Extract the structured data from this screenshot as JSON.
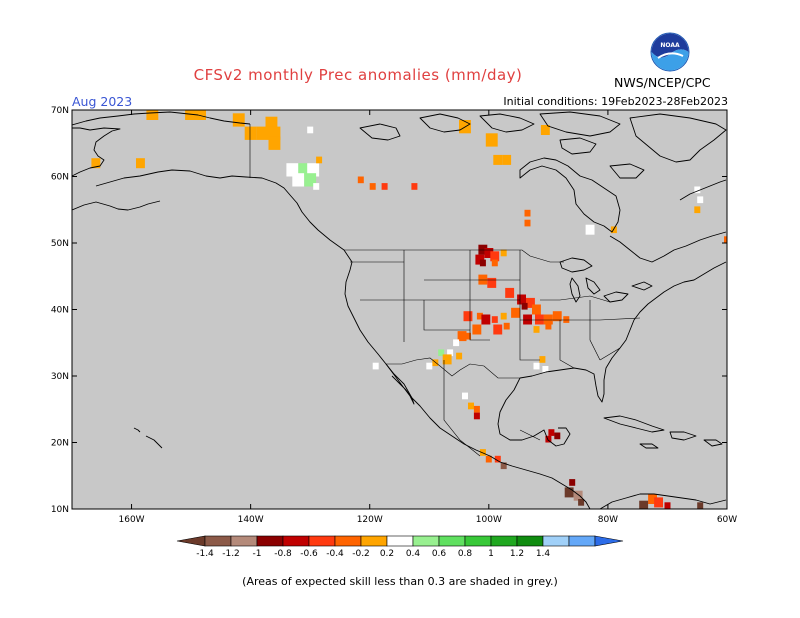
{
  "title": "CFSv2 monthly Prec anomalies (mm/day)",
  "agency": "NWS/NCEP/CPC",
  "logo_text": "NOAA",
  "month": "Aug 2023",
  "initial_conditions": "Initial conditions: 19Feb2023-28Feb2023",
  "footnote": "(Areas of expected skill less than 0.3 are shaded in grey.)",
  "map": {
    "projection": "equirectangular",
    "lon_range": [
      -170,
      -60
    ],
    "lat_range": [
      10,
      70
    ],
    "lat_ticks": [
      {
        "value": 70,
        "label": "70N"
      },
      {
        "value": 60,
        "label": "60N"
      },
      {
        "value": 50,
        "label": "50N"
      },
      {
        "value": 40,
        "label": "40N"
      },
      {
        "value": 30,
        "label": "30N"
      },
      {
        "value": 20,
        "label": "20N"
      },
      {
        "value": 10,
        "label": "10N"
      }
    ],
    "lon_ticks": [
      {
        "value": -160,
        "label": "160W"
      },
      {
        "value": -140,
        "label": "140W"
      },
      {
        "value": -120,
        "label": "120W"
      },
      {
        "value": -100,
        "label": "100W"
      },
      {
        "value": -80,
        "label": "80W"
      },
      {
        "value": -60,
        "label": "60W"
      }
    ],
    "masked_color": "#c8c8c8",
    "coast_color": "#000000"
  },
  "colorbar": {
    "bins": [
      {
        "color": "#6b3a2a"
      },
      {
        "color": "#8c5a48"
      },
      {
        "color": "#b48a7a"
      },
      {
        "color": "#8b0000"
      },
      {
        "color": "#c00000"
      },
      {
        "color": "#ff3a10"
      },
      {
        "color": "#ff6400"
      },
      {
        "color": "#ffa500"
      },
      {
        "color": "#ffffff"
      },
      {
        "color": "#98f090"
      },
      {
        "color": "#60e060"
      },
      {
        "color": "#38c838"
      },
      {
        "color": "#20a820"
      },
      {
        "color": "#108c10"
      },
      {
        "color": "#a0d0f8"
      },
      {
        "color": "#64a8f8"
      },
      {
        "color": "#2c6ce8"
      }
    ],
    "labels": [
      "-1.4",
      "-1.2",
      "-1",
      "-0.8",
      "-0.6",
      "-0.4",
      "-0.2",
      "0.2",
      "0.4",
      "0.6",
      "0.8",
      "1",
      "1.2",
      "1.4"
    ]
  },
  "anomalies": [
    {
      "lon": -156.5,
      "lat": 69.5,
      "value": 0,
      "size": 2
    },
    {
      "lon": -150,
      "lat": 69.5,
      "value": 0,
      "size": 2
    },
    {
      "lon": -148.5,
      "lat": 69.5,
      "value": 0,
      "size": 2
    },
    {
      "lon": -142,
      "lat": 68.5,
      "value": 0,
      "size": 2
    },
    {
      "lon": -136.5,
      "lat": 68,
      "value": 0,
      "size": 2
    },
    {
      "lon": -140,
      "lat": 66.5,
      "value": 0,
      "size": 2
    },
    {
      "lon": -138,
      "lat": 66.5,
      "value": 0,
      "size": 2
    },
    {
      "lon": -136,
      "lat": 66.5,
      "value": 0,
      "size": 2
    },
    {
      "lon": -136,
      "lat": 65,
      "value": 0,
      "size": 2
    },
    {
      "lon": -130,
      "lat": 67,
      "value": 0.3,
      "size": 1
    },
    {
      "lon": -158.5,
      "lat": 62,
      "value": 0,
      "size": 1.5
    },
    {
      "lon": -166,
      "lat": 62,
      "value": 0,
      "size": 1.5
    },
    {
      "lon": -133,
      "lat": 61,
      "value": 0.3,
      "size": 2
    },
    {
      "lon": -131,
      "lat": 61,
      "value": 0.5,
      "size": 2
    },
    {
      "lon": -129.5,
      "lat": 61,
      "value": 0.3,
      "size": 2
    },
    {
      "lon": -132,
      "lat": 59.5,
      "value": 0.3,
      "size": 2
    },
    {
      "lon": -130,
      "lat": 59.5,
      "value": 0.5,
      "size": 2
    },
    {
      "lon": -128.5,
      "lat": 62.5,
      "value": 0,
      "size": 1
    },
    {
      "lon": -129,
      "lat": 58.5,
      "value": 0.3,
      "size": 1
    },
    {
      "lon": -121.5,
      "lat": 59.5,
      "value": -0.3,
      "size": 1
    },
    {
      "lon": -119.5,
      "lat": 58.5,
      "value": -0.3,
      "size": 1
    },
    {
      "lon": -117.5,
      "lat": 58.5,
      "value": -0.5,
      "size": 1
    },
    {
      "lon": -112.5,
      "lat": 58.5,
      "value": -0.5,
      "size": 1
    },
    {
      "lon": -104,
      "lat": 67.5,
      "value": 0,
      "size": 2
    },
    {
      "lon": -99.5,
      "lat": 65.5,
      "value": 0,
      "size": 2
    },
    {
      "lon": -97,
      "lat": 62.5,
      "value": 0,
      "size": 1.5
    },
    {
      "lon": -90.5,
      "lat": 67,
      "value": 0,
      "size": 1.5
    },
    {
      "lon": -98.5,
      "lat": 62.5,
      "value": 0,
      "size": 1.5
    },
    {
      "lon": -93.5,
      "lat": 54.5,
      "value": -0.3,
      "size": 1
    },
    {
      "lon": -93.5,
      "lat": 53,
      "value": -0.3,
      "size": 1
    },
    {
      "lon": -83,
      "lat": 52,
      "value": 0.3,
      "size": 1.5
    },
    {
      "lon": -79,
      "lat": 52,
      "value": 0,
      "size": 1
    },
    {
      "lon": -65,
      "lat": 58,
      "value": 0.3,
      "size": 1
    },
    {
      "lon": -64.5,
      "lat": 56.5,
      "value": 0.3,
      "size": 1
    },
    {
      "lon": -65,
      "lat": 55,
      "value": 0,
      "size": 1
    },
    {
      "lon": -60,
      "lat": 50.5,
      "value": -0.3,
      "size": 1
    },
    {
      "lon": -101,
      "lat": 49,
      "value": -0.9,
      "size": 1.5
    },
    {
      "lon": -100,
      "lat": 48.5,
      "value": -0.7,
      "size": 1.5
    },
    {
      "lon": -99,
      "lat": 48,
      "value": -0.5,
      "size": 1.5
    },
    {
      "lon": -101.5,
      "lat": 47.5,
      "value": -0.7,
      "size": 1.5
    },
    {
      "lon": -101,
      "lat": 47,
      "value": -0.9,
      "size": 1
    },
    {
      "lon": -99,
      "lat": 47,
      "value": -0.3,
      "size": 1
    },
    {
      "lon": -97.5,
      "lat": 48.5,
      "value": 0,
      "size": 1
    },
    {
      "lon": -101,
      "lat": 44.5,
      "value": -0.3,
      "size": 1.5
    },
    {
      "lon": -99.5,
      "lat": 44,
      "value": -0.5,
      "size": 1.5
    },
    {
      "lon": -96.5,
      "lat": 42.5,
      "value": -0.5,
      "size": 1.5
    },
    {
      "lon": -94.5,
      "lat": 41.5,
      "value": -0.7,
      "size": 1.5
    },
    {
      "lon": -93,
      "lat": 41,
      "value": -0.5,
      "size": 1.5
    },
    {
      "lon": -94,
      "lat": 40.5,
      "value": -0.9,
      "size": 1
    },
    {
      "lon": -92,
      "lat": 40,
      "value": -0.3,
      "size": 1.5
    },
    {
      "lon": -103.5,
      "lat": 39,
      "value": -0.5,
      "size": 1.5
    },
    {
      "lon": -101.5,
      "lat": 39,
      "value": -0.3,
      "size": 1
    },
    {
      "lon": -100.5,
      "lat": 38.5,
      "value": -0.7,
      "size": 1.5
    },
    {
      "lon": -99,
      "lat": 38.5,
      "value": -0.5,
      "size": 1
    },
    {
      "lon": -97.5,
      "lat": 39,
      "value": 0,
      "size": 1
    },
    {
      "lon": -95.5,
      "lat": 39.5,
      "value": -0.3,
      "size": 1.5
    },
    {
      "lon": -93.5,
      "lat": 38.5,
      "value": -0.7,
      "size": 1.5
    },
    {
      "lon": -91.5,
      "lat": 38.5,
      "value": -0.5,
      "size": 1.5
    },
    {
      "lon": -90,
      "lat": 38.5,
      "value": -0.3,
      "size": 1.5
    },
    {
      "lon": -88.5,
      "lat": 39,
      "value": -0.3,
      "size": 1.5
    },
    {
      "lon": -87,
      "lat": 38.5,
      "value": -0.3,
      "size": 1
    },
    {
      "lon": -102,
      "lat": 37,
      "value": -0.3,
      "size": 1.5
    },
    {
      "lon": -98.5,
      "lat": 37,
      "value": -0.5,
      "size": 1.5
    },
    {
      "lon": -97,
      "lat": 37.5,
      "value": -0.3,
      "size": 1
    },
    {
      "lon": -92,
      "lat": 37,
      "value": 0,
      "size": 1
    },
    {
      "lon": -90,
      "lat": 37.5,
      "value": -0.3,
      "size": 1
    },
    {
      "lon": -104.5,
      "lat": 36,
      "value": -0.3,
      "size": 1.5
    },
    {
      "lon": -103.5,
      "lat": 36,
      "value": -0.3,
      "size": 1
    },
    {
      "lon": -106.5,
      "lat": 33.5,
      "value": 0.3,
      "size": 1
    },
    {
      "lon": -108,
      "lat": 33.5,
      "value": 0.5,
      "size": 1
    },
    {
      "lon": -105.5,
      "lat": 35,
      "value": 0.3,
      "size": 1
    },
    {
      "lon": -107,
      "lat": 32.5,
      "value": 0,
      "size": 1.5
    },
    {
      "lon": -109,
      "lat": 32,
      "value": 0,
      "size": 1
    },
    {
      "lon": -110,
      "lat": 31.5,
      "value": 0.3,
      "size": 1
    },
    {
      "lon": -105,
      "lat": 33,
      "value": 0,
      "size": 1
    },
    {
      "lon": -119,
      "lat": 31.5,
      "value": 0.3,
      "size": 1
    },
    {
      "lon": -92,
      "lat": 31.5,
      "value": 0.3,
      "size": 1
    },
    {
      "lon": -90.5,
      "lat": 31,
      "value": 0.3,
      "size": 1
    },
    {
      "lon": -91,
      "lat": 32.5,
      "value": 0,
      "size": 1
    },
    {
      "lon": -104,
      "lat": 27,
      "value": 0.3,
      "size": 1
    },
    {
      "lon": -103,
      "lat": 25.5,
      "value": 0,
      "size": 1
    },
    {
      "lon": -102,
      "lat": 25,
      "value": -0.3,
      "size": 1
    },
    {
      "lon": -102,
      "lat": 24,
      "value": -0.7,
      "size": 1
    },
    {
      "lon": -89.5,
      "lat": 21.5,
      "value": -0.7,
      "size": 1
    },
    {
      "lon": -88.5,
      "lat": 21,
      "value": -0.9,
      "size": 1
    },
    {
      "lon": -90,
      "lat": 20.5,
      "value": -0.7,
      "size": 1
    },
    {
      "lon": -101,
      "lat": 18.5,
      "value": 0,
      "size": 1
    },
    {
      "lon": -100,
      "lat": 17.5,
      "value": -0.3,
      "size": 1
    },
    {
      "lon": -98.5,
      "lat": 17.5,
      "value": -0.5,
      "size": 1
    },
    {
      "lon": -97.5,
      "lat": 16.5,
      "value": -1.3,
      "size": 1
    },
    {
      "lon": -86,
      "lat": 14,
      "value": -0.9,
      "size": 1
    },
    {
      "lon": -86.5,
      "lat": 12.5,
      "value": -1.5,
      "size": 1.5
    },
    {
      "lon": -85,
      "lat": 12,
      "value": -1.1,
      "size": 1.5
    },
    {
      "lon": -84.5,
      "lat": 11,
      "value": -1.5,
      "size": 1
    },
    {
      "lon": -72.5,
      "lat": 11.5,
      "value": -0.3,
      "size": 1.5
    },
    {
      "lon": -71.5,
      "lat": 11,
      "value": -0.5,
      "size": 1.5
    },
    {
      "lon": -74,
      "lat": 10.5,
      "value": -1.5,
      "size": 1.5
    },
    {
      "lon": -70,
      "lat": 10.5,
      "value": -0.7,
      "size": 1
    },
    {
      "lon": -64.5,
      "lat": 10.5,
      "value": -1.5,
      "size": 1
    }
  ]
}
